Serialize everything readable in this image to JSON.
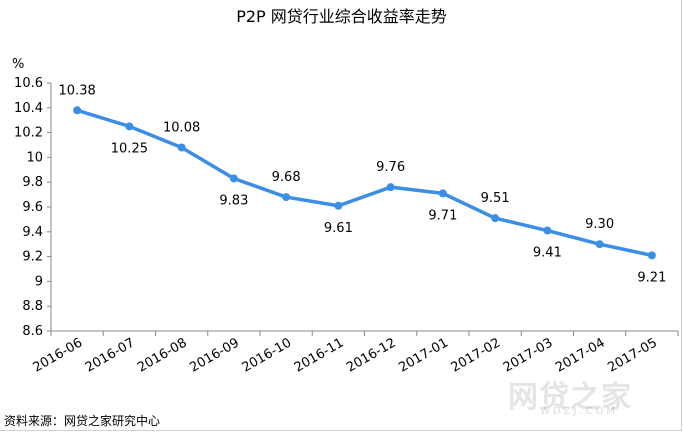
{
  "chart_data": {
    "type": "line",
    "title": "P2P 网贷行业综合收益率走势",
    "ylabel": "%",
    "xlabel": "",
    "categories": [
      "2016-06",
      "2016-07",
      "2016-08",
      "2016-09",
      "2016-10",
      "2016-11",
      "2016-12",
      "2017-01",
      "2017-02",
      "2017-03",
      "2017-04",
      "2017-05"
    ],
    "series": [
      {
        "values": [
          10.38,
          10.25,
          10.08,
          9.83,
          9.68,
          9.61,
          9.76,
          9.71,
          9.51,
          9.41,
          9.3,
          9.21
        ]
      }
    ],
    "data_labels": [
      "10.38",
      "10.25",
      "10.08",
      "9.83",
      "9.68",
      "9.61",
      "9.76",
      "9.71",
      "9.51",
      "9.41",
      "9.30",
      "9.21"
    ],
    "ylim": [
      8.6,
      10.6
    ],
    "yticks": [
      "8.6",
      "8.8",
      "9",
      "9.2",
      "9.4",
      "9.6",
      "9.8",
      "10",
      "10.2",
      "10.4",
      "10.6"
    ],
    "grid": false,
    "line_color": "#3a8ee6"
  },
  "source": "资料来源：网贷之家研究中心",
  "watermark": "网贷之家",
  "watermark_sub": "WDZJ.COM"
}
